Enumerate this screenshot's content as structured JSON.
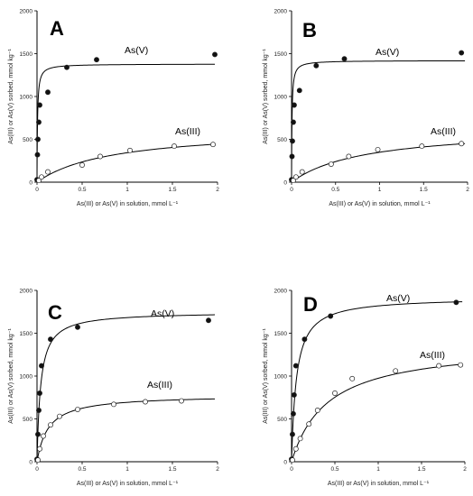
{
  "chart_data": [
    {
      "type": "scatter",
      "panel_label": "A",
      "xlabel": "As(III) or As(V) in solution, mmol L⁻¹",
      "ylabel": "As(III) or As(V) sorbed, mmol kg⁻¹",
      "xlim": [
        0,
        2
      ],
      "ylim": [
        0,
        2000
      ],
      "x_ticks": [
        "0",
        "0.5",
        "1",
        "1.5",
        "2"
      ],
      "y_ticks": [
        "0",
        "500",
        "1000",
        "1500",
        "2000"
      ],
      "grid": false,
      "series": [
        {
          "name": "As(V)",
          "marker": "filled-circle",
          "fit": {
            "qmax": 1380,
            "k": 180
          },
          "points": [
            [
              0.0,
              30
            ],
            [
              0.005,
              320
            ],
            [
              0.01,
              500
            ],
            [
              0.02,
              700
            ],
            [
              0.03,
              900
            ],
            [
              0.12,
              1050
            ],
            [
              0.33,
              1340
            ],
            [
              0.66,
              1430
            ],
            [
              1.97,
              1490
            ]
          ]
        },
        {
          "name": "As(III)",
          "marker": "open-circle",
          "fit": {
            "qmax": 630,
            "k": 1.2
          },
          "points": [
            [
              0.02,
              20
            ],
            [
              0.05,
              60
            ],
            [
              0.12,
              120
            ],
            [
              0.5,
              200
            ],
            [
              0.7,
              300
            ],
            [
              1.03,
              370
            ],
            [
              1.52,
              420
            ],
            [
              1.95,
              440
            ]
          ]
        }
      ]
    },
    {
      "type": "scatter",
      "panel_label": "B",
      "xlabel": "As(III) or As(V) in solution, mmol L⁻¹",
      "ylabel": "As(III) or As(V) sorbed, mmol kg⁻¹",
      "xlim": [
        0,
        2
      ],
      "ylim": [
        0,
        2000
      ],
      "x_ticks": [
        "0",
        "0.5",
        "1",
        "1.5",
        "2"
      ],
      "y_ticks": [
        "0",
        "500",
        "1000",
        "1500",
        "2000"
      ],
      "grid": false,
      "series": [
        {
          "name": "As(V)",
          "marker": "filled-circle",
          "fit": {
            "qmax": 1420,
            "k": 200
          },
          "points": [
            [
              0.0,
              30
            ],
            [
              0.005,
              300
            ],
            [
              0.01,
              480
            ],
            [
              0.02,
              700
            ],
            [
              0.03,
              900
            ],
            [
              0.09,
              1070
            ],
            [
              0.28,
              1360
            ],
            [
              0.6,
              1440
            ],
            [
              1.93,
              1510
            ]
          ]
        },
        {
          "name": "As(III)",
          "marker": "open-circle",
          "fit": {
            "qmax": 640,
            "k": 1.2
          },
          "points": [
            [
              0.02,
              20
            ],
            [
              0.05,
              60
            ],
            [
              0.12,
              120
            ],
            [
              0.45,
              210
            ],
            [
              0.65,
              300
            ],
            [
              0.98,
              380
            ],
            [
              1.48,
              420
            ],
            [
              1.93,
              450
            ]
          ]
        }
      ]
    },
    {
      "type": "scatter",
      "panel_label": "C",
      "xlabel": "As(III) or As(V) in solution, mmol L⁻¹",
      "ylabel": "As(III) or As(V) sorbed, mmol kg⁻¹",
      "xlim": [
        0,
        2
      ],
      "ylim": [
        0,
        2000
      ],
      "x_ticks": [
        "0",
        "0.5",
        "1",
        "1.5",
        "2"
      ],
      "y_ticks": [
        "0",
        "500",
        "1000",
        "1500",
        "2000"
      ],
      "grid": false,
      "series": [
        {
          "name": "As(V)",
          "marker": "filled-circle",
          "fit": {
            "qmax": 1750,
            "k": 25
          },
          "points": [
            [
              0.0,
              30
            ],
            [
              0.01,
              320
            ],
            [
              0.02,
              600
            ],
            [
              0.03,
              800
            ],
            [
              0.05,
              1120
            ],
            [
              0.15,
              1430
            ],
            [
              0.45,
              1570
            ],
            [
              1.9,
              1650
            ]
          ]
        },
        {
          "name": "As(III)",
          "marker": "open-circle",
          "fit": {
            "qmax": 780,
            "k": 8
          },
          "points": [
            [
              0.01,
              20
            ],
            [
              0.03,
              150
            ],
            [
              0.07,
              300
            ],
            [
              0.15,
              430
            ],
            [
              0.25,
              530
            ],
            [
              0.45,
              610
            ],
            [
              0.85,
              670
            ],
            [
              1.2,
              700
            ],
            [
              1.6,
              710
            ]
          ]
        }
      ]
    },
    {
      "type": "scatter",
      "panel_label": "D",
      "xlabel": "As(III) or As(V) in solution, mmol L⁻¹",
      "ylabel": "As(III) or As(V) sorbed, mmol kg⁻¹",
      "xlim": [
        0,
        2
      ],
      "ylim": [
        0,
        2000
      ],
      "x_ticks": [
        "0",
        "0.5",
        "1",
        "1.5",
        "2"
      ],
      "y_ticks": [
        "0",
        "500",
        "1000",
        "1500",
        "2000"
      ],
      "grid": false,
      "series": [
        {
          "name": "As(V)",
          "marker": "filled-circle",
          "fit": {
            "qmax": 1920,
            "k": 18
          },
          "points": [
            [
              0.0,
              30
            ],
            [
              0.01,
              320
            ],
            [
              0.02,
              560
            ],
            [
              0.03,
              780
            ],
            [
              0.05,
              1120
            ],
            [
              0.15,
              1430
            ],
            [
              0.45,
              1700
            ],
            [
              1.9,
              1860
            ]
          ]
        },
        {
          "name": "As(III)",
          "marker": "open-circle",
          "fit": {
            "qmax": 1380,
            "k": 2.4
          },
          "points": [
            [
              0.01,
              20
            ],
            [
              0.05,
              150
            ],
            [
              0.1,
              270
            ],
            [
              0.2,
              440
            ],
            [
              0.3,
              600
            ],
            [
              0.5,
              800
            ],
            [
              0.7,
              970
            ],
            [
              1.2,
              1060
            ],
            [
              1.7,
              1120
            ],
            [
              1.95,
              1130
            ]
          ]
        }
      ]
    }
  ]
}
